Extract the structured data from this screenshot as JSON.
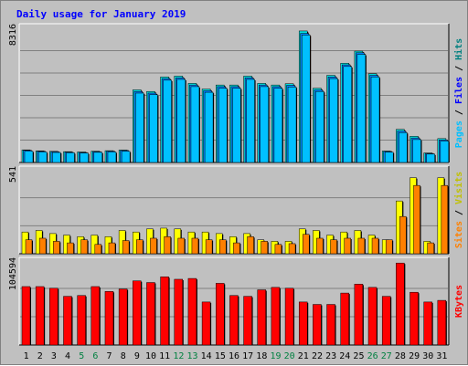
{
  "chart_data": {
    "type": "bar",
    "title": "Daily usage for January 2019",
    "categories": [
      "1",
      "2",
      "3",
      "4",
      "5",
      "6",
      "7",
      "8",
      "9",
      "10",
      "11",
      "12",
      "13",
      "14",
      "15",
      "16",
      "17",
      "18",
      "19",
      "20",
      "21",
      "22",
      "23",
      "24",
      "25",
      "26",
      "27",
      "28",
      "29",
      "30",
      "31"
    ],
    "weekend_days": [
      "5",
      "6",
      "12",
      "13",
      "19",
      "20",
      "26",
      "27"
    ],
    "panels": [
      {
        "name": "top",
        "ymax_label": "8316",
        "ymax": 8316,
        "series": [
          {
            "name": "Hits",
            "color": "#00e0e0",
            "values": [
              780,
              720,
              690,
              670,
              650,
              700,
              730,
              770,
              4500,
              4400,
              5300,
              5350,
              4900,
              4550,
              4800,
              4800,
              5350,
              4900,
              4800,
              4880,
              8150,
              4600,
              5400,
              6150,
              6900,
              5500,
              710,
              2050,
              1620,
              590,
              1480
            ]
          },
          {
            "name": "Files",
            "color": "#0080ff",
            "values": [
              750,
              690,
              660,
              640,
              620,
              670,
              700,
              740,
              4400,
              4300,
              5200,
              5250,
              4800,
              4450,
              4700,
              4700,
              5250,
              4800,
              4700,
              4780,
              8000,
              4500,
              5300,
              6050,
              6800,
              5400,
              680,
              1950,
              1520,
              560,
              1400
            ]
          },
          {
            "name": "Pages",
            "color": "#00c0ff",
            "values": [
              700,
              650,
              620,
              600,
              580,
              630,
              650,
              690,
              4300,
              4200,
              5100,
              5150,
              4700,
              4350,
              4600,
              4600,
              5150,
              4700,
              4600,
              4680,
              7900,
              4400,
              5200,
              5950,
              6700,
              5300,
              640,
              1850,
              1420,
              520,
              1330
            ]
          }
        ]
      },
      {
        "name": "middle",
        "ymax_label": "541",
        "ymax": 541,
        "series": [
          {
            "name": "Visits",
            "color": "#ffff00",
            "values": [
              140,
              150,
              130,
              120,
              110,
              120,
              110,
              150,
              140,
              160,
              165,
              160,
              140,
              140,
              130,
              110,
              130,
              90,
              80,
              80,
              160,
              150,
              120,
              140,
              150,
              120,
              90,
              340,
              490,
              80,
              490
            ]
          },
          {
            "name": "Sites",
            "color": "#ff8000",
            "values": [
              90,
              100,
              80,
              70,
              90,
              60,
              70,
              85,
              90,
              100,
              110,
              100,
              100,
              90,
              90,
              70,
              110,
              80,
              60,
              65,
              125,
              100,
              90,
              100,
              100,
              100,
              90,
              240,
              440,
              70,
              440
            ]
          }
        ]
      },
      {
        "name": "bottom",
        "ymax_label": "104594",
        "ymax": 104594,
        "series": [
          {
            "name": "KBytes",
            "color": "#ff0000",
            "values": [
              72000,
              72000,
              70000,
              60000,
              61000,
              72000,
              66000,
              69000,
              79000,
              77000,
              84000,
              81000,
              82000,
              53000,
              76000,
              61000,
              60000,
              68000,
              71000,
              70000,
              53000,
              50000,
              50000,
              64000,
              75000,
              71000,
              60000,
              101000,
              65000,
              53000,
              55000
            ]
          }
        ]
      }
    ],
    "legend": {
      "top": [
        {
          "text": "Pages",
          "color": "#00c0ff"
        },
        {
          "text": " / ",
          "color": "#000000"
        },
        {
          "text": "Files",
          "color": "#0000ff"
        },
        {
          "text": " / ",
          "color": "#000000"
        },
        {
          "text": "Hits",
          "color": "#008080"
        }
      ],
      "middle": [
        {
          "text": "Sites",
          "color": "#ff8000"
        },
        {
          "text": " / ",
          "color": "#000000"
        },
        {
          "text": "Visits",
          "color": "#c0c000"
        }
      ],
      "bottom": [
        {
          "text": "KBytes",
          "color": "#ff0000"
        }
      ]
    },
    "colors": {
      "background": "#c0c0c0",
      "gridline": "#808080",
      "weekday_label": "#000000",
      "weekend_label": "#008040",
      "title": "#0000ff"
    }
  }
}
